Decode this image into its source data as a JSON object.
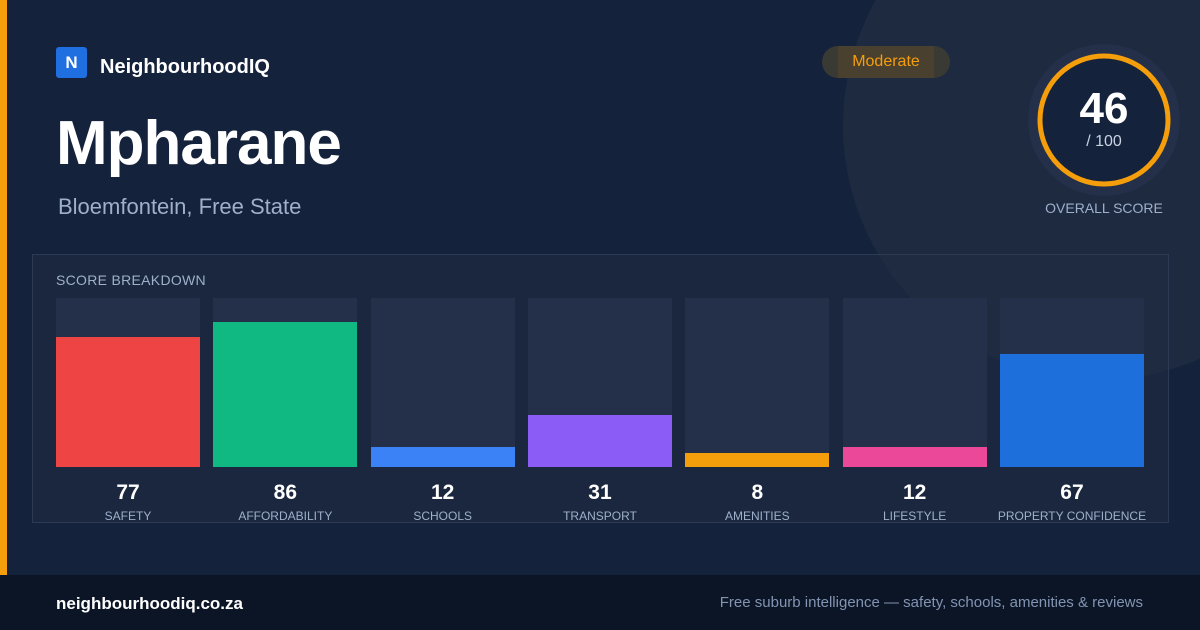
{
  "brand": {
    "logo_letter": "N",
    "name": "NeighbourhoodIQ",
    "logo_color": "#1f6fe0"
  },
  "suburb": {
    "name": "Mpharane",
    "location": "Bloemfontein, Free State"
  },
  "rating": {
    "label": "Moderate",
    "color": "#f59e0b"
  },
  "overall": {
    "score": "46",
    "max_text": "/ 100",
    "score_value": 46,
    "max_value": 100,
    "label": "OVERALL SCORE",
    "ring_color": "#f59e0b"
  },
  "breakdown": {
    "title": "SCORE BREAKDOWN",
    "items": [
      {
        "label": "SAFETY",
        "value": "77",
        "score": 77,
        "color": "#ef4444"
      },
      {
        "label": "AFFORDABILITY",
        "value": "86",
        "score": 86,
        "color": "#10b981"
      },
      {
        "label": "SCHOOLS",
        "value": "12",
        "score": 12,
        "color": "#3b82f6"
      },
      {
        "label": "TRANSPORT",
        "value": "31",
        "score": 31,
        "color": "#8b5cf6"
      },
      {
        "label": "AMENITIES",
        "value": "8",
        "score": 8,
        "color": "#f59e0b"
      },
      {
        "label": "LIFESTYLE",
        "value": "12",
        "score": 12,
        "color": "#ec4899"
      },
      {
        "label": "PROPERTY CONFIDENCE",
        "value": "67",
        "score": 67,
        "color": "#1d6fdc"
      }
    ]
  },
  "footer": {
    "url": "neighbourhoodiq.co.za",
    "tagline": "Free suburb intelligence — safety, schools, amenities & reviews"
  },
  "accent_color": "#f59e0b"
}
